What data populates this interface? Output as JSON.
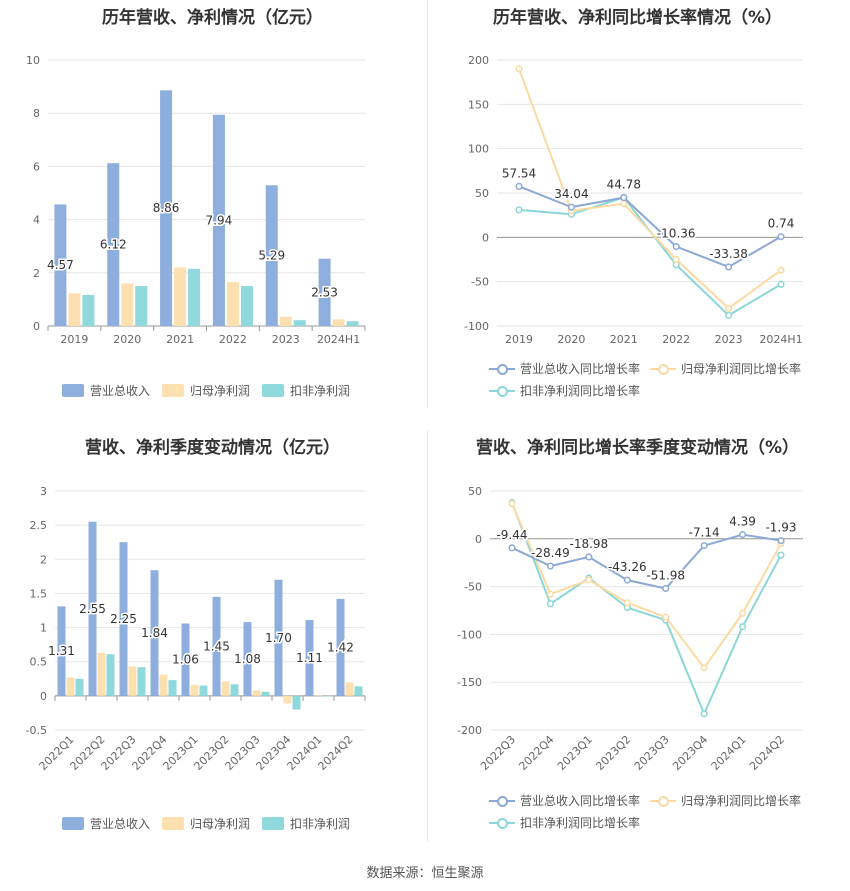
{
  "colors": {
    "revenue": "#8eaedd",
    "parent_net": "#fde0b0",
    "deducted_net": "#8fd8dc",
    "rev_line": "#8ba8d6",
    "parent_line": "#fcd9a1",
    "deducted_line": "#8ad6d8"
  },
  "source": "数据来源：恒生聚源",
  "chart_data": [
    {
      "id": "annual-bars",
      "type": "bar",
      "title": "历年营收、净利情况（亿元）",
      "categories": [
        "2019",
        "2020",
        "2021",
        "2022",
        "2023",
        "2024H1"
      ],
      "ylim": [
        0,
        10
      ],
      "yticks": [
        0,
        2,
        4,
        6,
        8,
        10
      ],
      "series": [
        {
          "name": "营业总收入",
          "values": [
            4.57,
            6.12,
            8.86,
            7.94,
            5.29,
            2.53
          ],
          "labels": [
            "4.57",
            "6.12",
            "8.86",
            "7.94",
            "5.29",
            "2.53"
          ]
        },
        {
          "name": "归母净利润",
          "values": [
            1.23,
            1.6,
            2.2,
            1.65,
            0.35,
            0.25
          ]
        },
        {
          "name": "扣非净利润",
          "values": [
            1.17,
            1.5,
            2.15,
            1.5,
            0.22,
            0.18
          ]
        }
      ],
      "legend": [
        "营业总收入",
        "归母净利润",
        "扣非净利润"
      ]
    },
    {
      "id": "annual-growth",
      "type": "line",
      "title": "历年营收、净利同比增长率情况（%）",
      "categories": [
        "2019",
        "2020",
        "2021",
        "2022",
        "2023",
        "2024H1"
      ],
      "ylim": [
        -100,
        200
      ],
      "yticks": [
        -100,
        -50,
        0,
        50,
        100,
        150,
        200
      ],
      "series": [
        {
          "name": "营业总收入同比增长率",
          "values": [
            57.54,
            34.04,
            44.78,
            -10.36,
            -33.38,
            0.74
          ],
          "labels": [
            "57.54",
            "34.04",
            "44.78",
            "-10.36",
            "-33.38",
            "0.74"
          ]
        },
        {
          "name": "归母净利润同比增长率",
          "values": [
            190,
            30,
            38,
            -25,
            -80,
            -37
          ]
        },
        {
          "name": "扣非净利润同比增长率",
          "values": [
            31,
            26,
            45,
            -31,
            -88,
            -53
          ]
        }
      ],
      "legend": [
        "营业总收入同比增长率",
        "归母净利润同比增长率",
        "扣非净利润同比增长率"
      ]
    },
    {
      "id": "quarterly-bars",
      "type": "bar",
      "title": "营收、净利季度变动情况（亿元）",
      "categories": [
        "2022Q1",
        "2022Q2",
        "2022Q3",
        "2022Q4",
        "2023Q1",
        "2023Q2",
        "2023Q3",
        "2023Q4",
        "2024Q1",
        "2024Q2"
      ],
      "ylim": [
        -0.5,
        3
      ],
      "yticks": [
        -0.5,
        0,
        0.5,
        1,
        1.5,
        2,
        2.5,
        3
      ],
      "series": [
        {
          "name": "营业总收入",
          "values": [
            1.31,
            2.55,
            2.25,
            1.84,
            1.06,
            1.45,
            1.08,
            1.7,
            1.11,
            1.42
          ],
          "labels": [
            "1.31",
            "2.55",
            "2.25",
            "1.84",
            "1.06",
            "1.45",
            "1.08",
            "1.70",
            "1.11",
            "1.42"
          ]
        },
        {
          "name": "归母净利润",
          "values": [
            0.27,
            0.63,
            0.43,
            0.31,
            0.16,
            0.21,
            0.08,
            -0.11,
            0.01,
            0.2
          ]
        },
        {
          "name": "扣非净利润",
          "values": [
            0.25,
            0.61,
            0.42,
            0.23,
            0.15,
            0.17,
            0.06,
            -0.2,
            0.0,
            0.14
          ]
        }
      ],
      "legend": [
        "营业总收入",
        "归母净利润",
        "扣非净利润"
      ]
    },
    {
      "id": "quarterly-growth",
      "type": "line",
      "title": "营收、净利同比增长率季度变动情况（%）",
      "categories": [
        "2022Q3",
        "2022Q4",
        "2023Q1",
        "2023Q2",
        "2023Q3",
        "2023Q4",
        "2024Q1",
        "2024Q2"
      ],
      "ylim": [
        -200,
        50
      ],
      "yticks": [
        -200,
        -150,
        -100,
        -50,
        0,
        50
      ],
      "series": [
        {
          "name": "营业总收入同比增长率",
          "values": [
            -9.44,
            -28.49,
            -18.98,
            -43.26,
            -51.98,
            -7.14,
            4.39,
            -1.93
          ],
          "labels": [
            "-9.44",
            "-28.49",
            "-18.98",
            "-43.26",
            "-51.98",
            "-7.14",
            "4.39",
            "-1.93"
          ]
        },
        {
          "name": "归母净利润同比增长率",
          "values": [
            37,
            -58,
            -43,
            -67,
            -82,
            -135,
            -78,
            -5
          ]
        },
        {
          "name": "扣非净利润同比增长率",
          "values": [
            38,
            -68,
            -41,
            -72,
            -85,
            -183,
            -92,
            -17
          ]
        }
      ],
      "legend": [
        "营业总收入同比增长率",
        "归母净利润同比增长率",
        "扣非净利润同比增长率"
      ]
    }
  ]
}
